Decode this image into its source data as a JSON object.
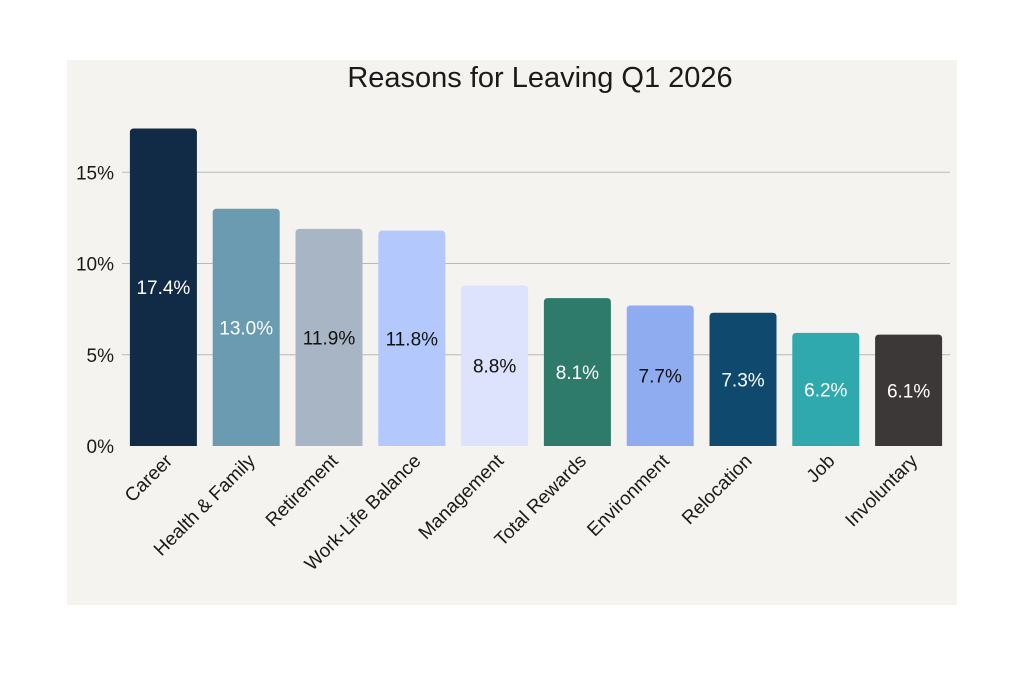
{
  "chart_data": {
    "type": "bar",
    "title": "Reasons for Leaving Q1 2026",
    "xlabel": "",
    "ylabel": "",
    "ylim": [
      0,
      17.5
    ],
    "yticks": [
      {
        "value": 0,
        "label": "0%"
      },
      {
        "value": 5,
        "label": "5%"
      },
      {
        "value": 10,
        "label": "10%"
      },
      {
        "value": 15,
        "label": "15%"
      }
    ],
    "grid": true,
    "legend": "none",
    "categories": [
      "Career",
      "Health & Family",
      "Retirement",
      "Work-Life Balance",
      "Management",
      "Total Rewards",
      "Environment",
      "Relocation",
      "Job",
      "Involuntary"
    ],
    "values": [
      17.4,
      13.0,
      11.9,
      11.8,
      8.8,
      8.1,
      7.7,
      7.3,
      6.2,
      6.1
    ],
    "data_labels": [
      "17.4%",
      "13.0%",
      "11.9%",
      "11.8%",
      "8.8%",
      "8.1%",
      "7.7%",
      "7.3%",
      "6.2%",
      "6.1%"
    ],
    "colors": [
      "#112a45",
      "#6a9bb0",
      "#a8b5c5",
      "#b3c9fe",
      "#dde2fd",
      "#2e7b6c",
      "#90acf0",
      "#0f4a6e",
      "#2fa9ae",
      "#3d3838"
    ],
    "label_colors": [
      "#ffffff",
      "#ffffff",
      "#111111",
      "#111111",
      "#111111",
      "#ffffff",
      "#111111",
      "#ffffff",
      "#ffffff",
      "#ffffff"
    ],
    "grid_color": "#b9b9b9",
    "background": "#f4f3f0"
  }
}
